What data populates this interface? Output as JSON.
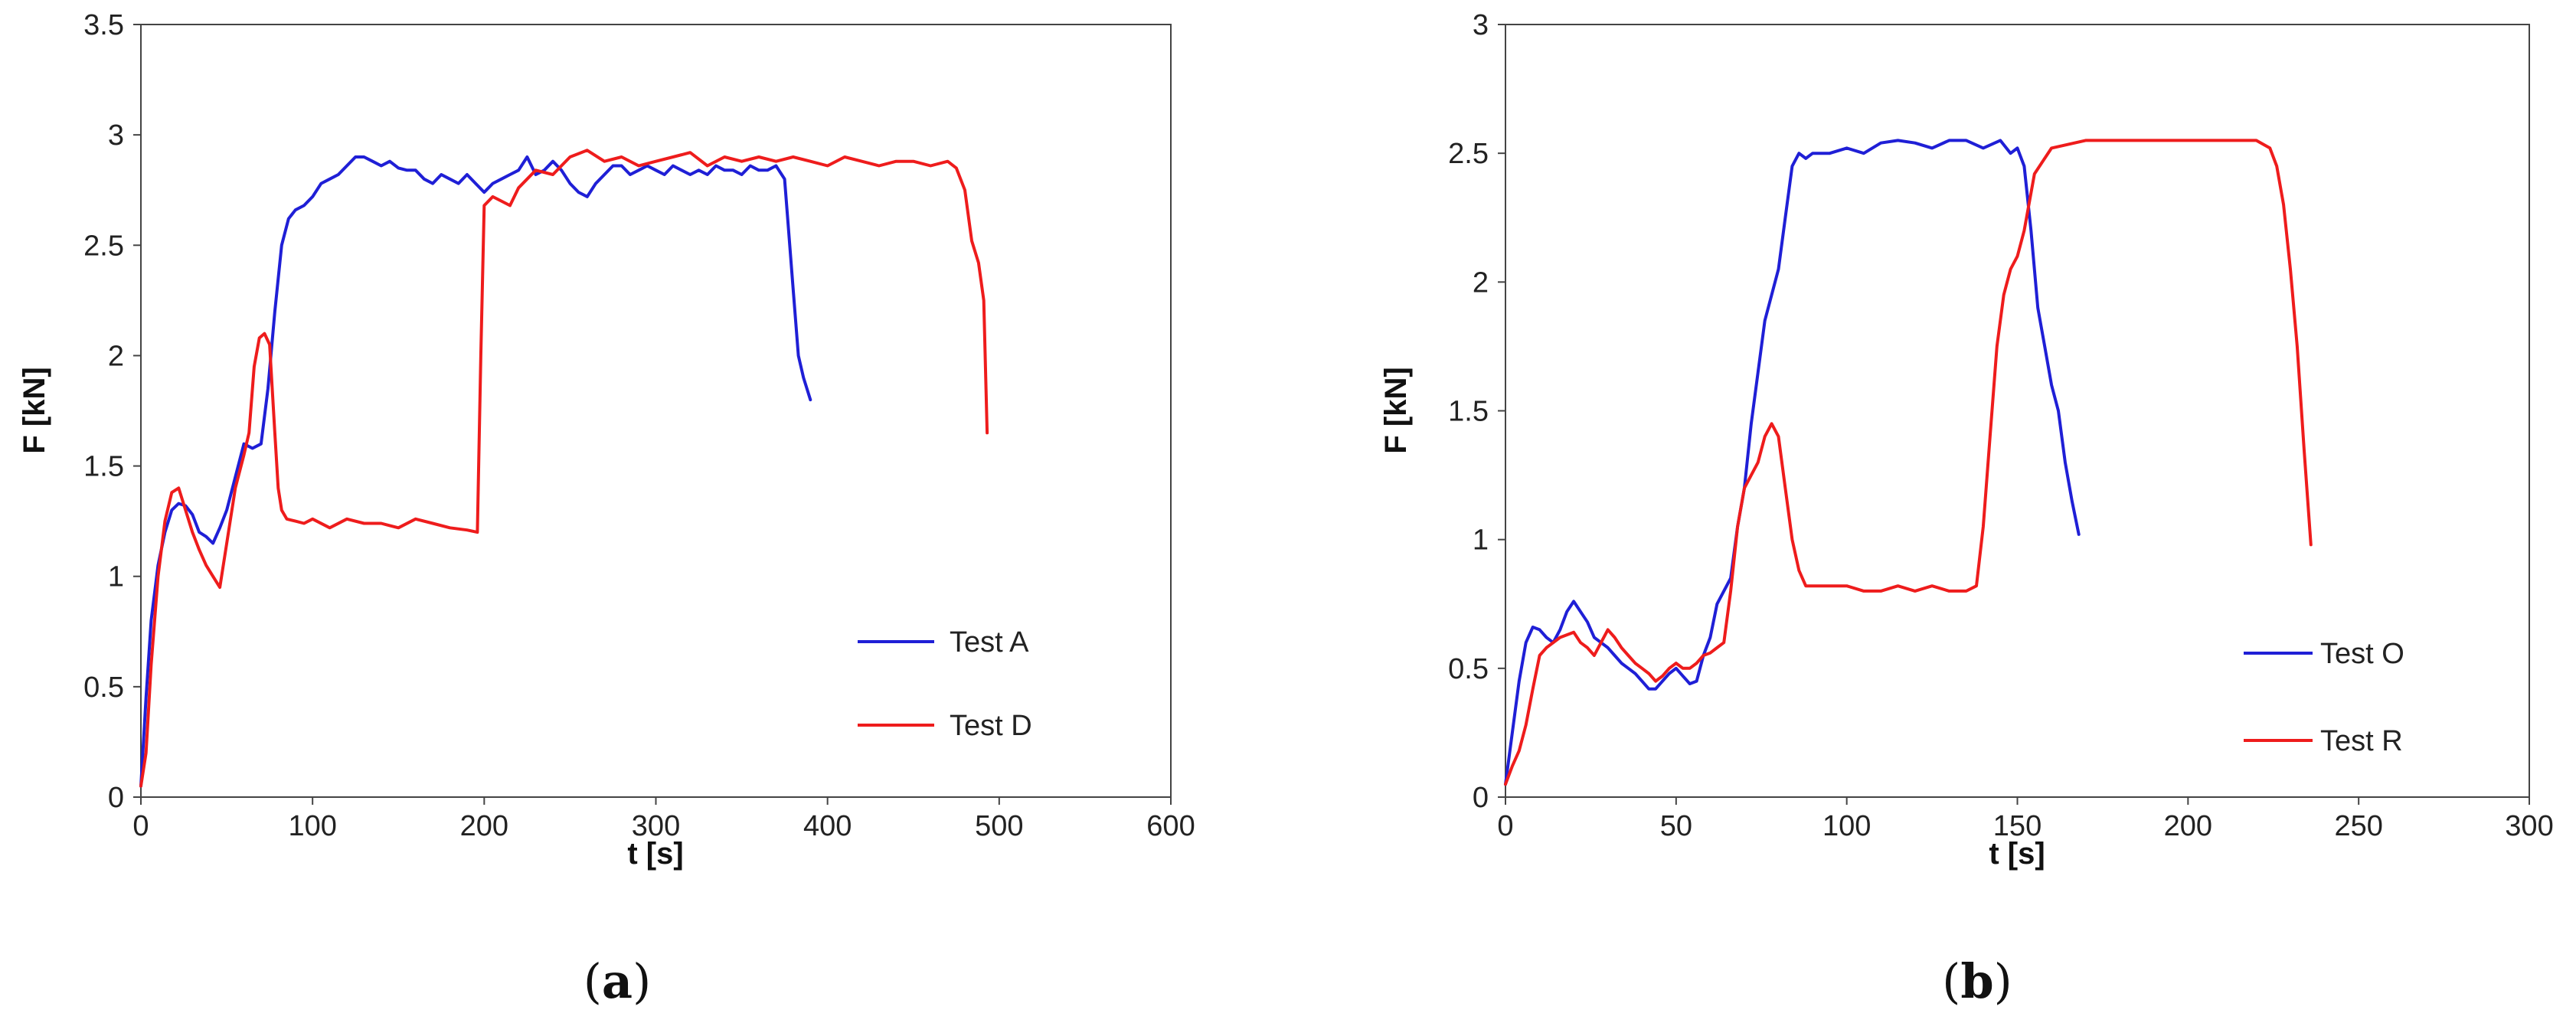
{
  "chart_data": [
    {
      "type": "line",
      "panel_label": "a",
      "caption_open": "(",
      "caption_close": ")",
      "xlabel": "t [s]",
      "ylabel": "F [kN]",
      "xlim": [
        0,
        600
      ],
      "ylim": [
        0,
        3.5
      ],
      "xticks": [
        0,
        100,
        200,
        300,
        400,
        500,
        600
      ],
      "yticks": [
        0,
        0.5,
        1,
        1.5,
        2,
        2.5,
        3,
        3.5
      ],
      "legend_position": "bottom-right",
      "series": [
        {
          "name": "Test A",
          "color": "#1f1fd6",
          "x": [
            0,
            3,
            6,
            10,
            14,
            18,
            22,
            26,
            30,
            34,
            38,
            42,
            46,
            50,
            55,
            60,
            65,
            70,
            74,
            78,
            82,
            86,
            90,
            95,
            100,
            105,
            110,
            115,
            120,
            125,
            130,
            135,
            140,
            145,
            150,
            155,
            160,
            165,
            170,
            175,
            180,
            185,
            190,
            195,
            200,
            205,
            210,
            215,
            220,
            225,
            230,
            235,
            240,
            245,
            250,
            255,
            260,
            265,
            270,
            275,
            280,
            285,
            290,
            295,
            300,
            305,
            310,
            315,
            320,
            325,
            330,
            335,
            340,
            345,
            350,
            355,
            360,
            365,
            370,
            375,
            377,
            380,
            383,
            386,
            390
          ],
          "y": [
            0.05,
            0.45,
            0.8,
            1.05,
            1.2,
            1.3,
            1.33,
            1.32,
            1.28,
            1.2,
            1.18,
            1.15,
            1.22,
            1.3,
            1.45,
            1.6,
            1.58,
            1.6,
            1.85,
            2.2,
            2.5,
            2.62,
            2.66,
            2.68,
            2.72,
            2.78,
            2.8,
            2.82,
            2.86,
            2.9,
            2.9,
            2.88,
            2.86,
            2.88,
            2.85,
            2.84,
            2.84,
            2.8,
            2.78,
            2.82,
            2.8,
            2.78,
            2.82,
            2.78,
            2.74,
            2.78,
            2.8,
            2.82,
            2.84,
            2.9,
            2.82,
            2.84,
            2.88,
            2.84,
            2.78,
            2.74,
            2.72,
            2.78,
            2.82,
            2.86,
            2.86,
            2.82,
            2.84,
            2.86,
            2.84,
            2.82,
            2.86,
            2.84,
            2.82,
            2.84,
            2.82,
            2.86,
            2.84,
            2.84,
            2.82,
            2.86,
            2.84,
            2.84,
            2.86,
            2.8,
            2.6,
            2.3,
            2.0,
            1.9,
            1.8
          ]
        },
        {
          "name": "Test D",
          "color": "#ee1c1c",
          "x": [
            0,
            3,
            6,
            10,
            14,
            18,
            22,
            26,
            30,
            34,
            38,
            42,
            46,
            50,
            55,
            60,
            63,
            66,
            69,
            72,
            75,
            78,
            80,
            82,
            85,
            90,
            95,
            100,
            110,
            120,
            130,
            140,
            150,
            160,
            170,
            180,
            190,
            196,
            198,
            200,
            205,
            210,
            215,
            220,
            230,
            240,
            250,
            260,
            270,
            280,
            290,
            300,
            310,
            320,
            330,
            340,
            350,
            360,
            370,
            380,
            390,
            400,
            410,
            420,
            430,
            440,
            450,
            460,
            470,
            475,
            480,
            484,
            488,
            491,
            493
          ],
          "y": [
            0.05,
            0.2,
            0.6,
            1.0,
            1.25,
            1.38,
            1.4,
            1.3,
            1.2,
            1.12,
            1.05,
            1.0,
            0.95,
            1.15,
            1.4,
            1.55,
            1.65,
            1.95,
            2.08,
            2.1,
            2.05,
            1.65,
            1.4,
            1.3,
            1.26,
            1.25,
            1.24,
            1.26,
            1.22,
            1.26,
            1.24,
            1.24,
            1.22,
            1.26,
            1.24,
            1.22,
            1.21,
            1.2,
            2.0,
            2.68,
            2.72,
            2.7,
            2.68,
            2.76,
            2.84,
            2.82,
            2.9,
            2.93,
            2.88,
            2.9,
            2.86,
            2.88,
            2.9,
            2.92,
            2.86,
            2.9,
            2.88,
            2.9,
            2.88,
            2.9,
            2.88,
            2.86,
            2.9,
            2.88,
            2.86,
            2.88,
            2.88,
            2.86,
            2.88,
            2.85,
            2.75,
            2.52,
            2.42,
            2.25,
            1.65
          ]
        }
      ]
    },
    {
      "type": "line",
      "panel_label": "b",
      "caption_open": "(",
      "caption_close": ")",
      "xlabel": "t [s]",
      "ylabel": "F [kN]",
      "xlim": [
        0,
        300
      ],
      "ylim": [
        0,
        3
      ],
      "xticks": [
        0,
        50,
        100,
        150,
        200,
        250,
        300
      ],
      "yticks": [
        0,
        0.5,
        1,
        1.5,
        2,
        2.5,
        3
      ],
      "legend_position": "bottom-right",
      "series": [
        {
          "name": "Test O",
          "color": "#1f1fd6",
          "x": [
            0,
            2,
            4,
            6,
            8,
            10,
            12,
            14,
            16,
            18,
            20,
            22,
            24,
            26,
            28,
            30,
            32,
            34,
            36,
            38,
            40,
            42,
            44,
            46,
            48,
            50,
            52,
            54,
            56,
            58,
            60,
            62,
            64,
            66,
            68,
            70,
            72,
            74,
            76,
            78,
            80,
            82,
            84,
            86,
            88,
            90,
            95,
            100,
            105,
            110,
            115,
            120,
            125,
            130,
            135,
            140,
            145,
            148,
            150,
            152,
            154,
            156,
            158,
            160,
            162,
            164,
            166,
            168
          ],
          "y": [
            0.05,
            0.25,
            0.45,
            0.6,
            0.66,
            0.65,
            0.62,
            0.6,
            0.65,
            0.72,
            0.76,
            0.72,
            0.68,
            0.62,
            0.6,
            0.58,
            0.55,
            0.52,
            0.5,
            0.48,
            0.45,
            0.42,
            0.42,
            0.45,
            0.48,
            0.5,
            0.47,
            0.44,
            0.45,
            0.55,
            0.62,
            0.75,
            0.8,
            0.85,
            1.05,
            1.2,
            1.45,
            1.65,
            1.85,
            1.95,
            2.05,
            2.25,
            2.45,
            2.5,
            2.48,
            2.5,
            2.5,
            2.52,
            2.5,
            2.54,
            2.55,
            2.54,
            2.52,
            2.55,
            2.55,
            2.52,
            2.55,
            2.5,
            2.52,
            2.45,
            2.2,
            1.9,
            1.75,
            1.6,
            1.5,
            1.3,
            1.15,
            1.02
          ]
        },
        {
          "name": "Test R",
          "color": "#ee1c1c",
          "x": [
            0,
            2,
            4,
            6,
            8,
            10,
            12,
            14,
            16,
            18,
            20,
            22,
            24,
            26,
            28,
            30,
            32,
            34,
            36,
            38,
            40,
            42,
            44,
            46,
            48,
            50,
            52,
            54,
            56,
            58,
            60,
            62,
            64,
            66,
            68,
            70,
            72,
            74,
            76,
            78,
            80,
            82,
            84,
            86,
            88,
            90,
            95,
            100,
            105,
            110,
            115,
            120,
            125,
            130,
            135,
            138,
            140,
            142,
            144,
            146,
            148,
            150,
            152,
            155,
            160,
            170,
            180,
            190,
            200,
            210,
            220,
            224,
            226,
            228,
            230,
            232,
            234,
            236
          ],
          "y": [
            0.05,
            0.12,
            0.18,
            0.28,
            0.42,
            0.55,
            0.58,
            0.6,
            0.62,
            0.63,
            0.64,
            0.6,
            0.58,
            0.55,
            0.6,
            0.65,
            0.62,
            0.58,
            0.55,
            0.52,
            0.5,
            0.48,
            0.45,
            0.47,
            0.5,
            0.52,
            0.5,
            0.5,
            0.52,
            0.55,
            0.56,
            0.58,
            0.6,
            0.8,
            1.05,
            1.2,
            1.25,
            1.3,
            1.4,
            1.45,
            1.4,
            1.2,
            1.0,
            0.88,
            0.82,
            0.82,
            0.82,
            0.82,
            0.8,
            0.8,
            0.82,
            0.8,
            0.82,
            0.8,
            0.8,
            0.82,
            1.05,
            1.4,
            1.75,
            1.95,
            2.05,
            2.1,
            2.2,
            2.42,
            2.52,
            2.55,
            2.55,
            2.55,
            2.55,
            2.55,
            2.55,
            2.52,
            2.45,
            2.3,
            2.05,
            1.75,
            1.35,
            0.98
          ]
        }
      ]
    }
  ]
}
